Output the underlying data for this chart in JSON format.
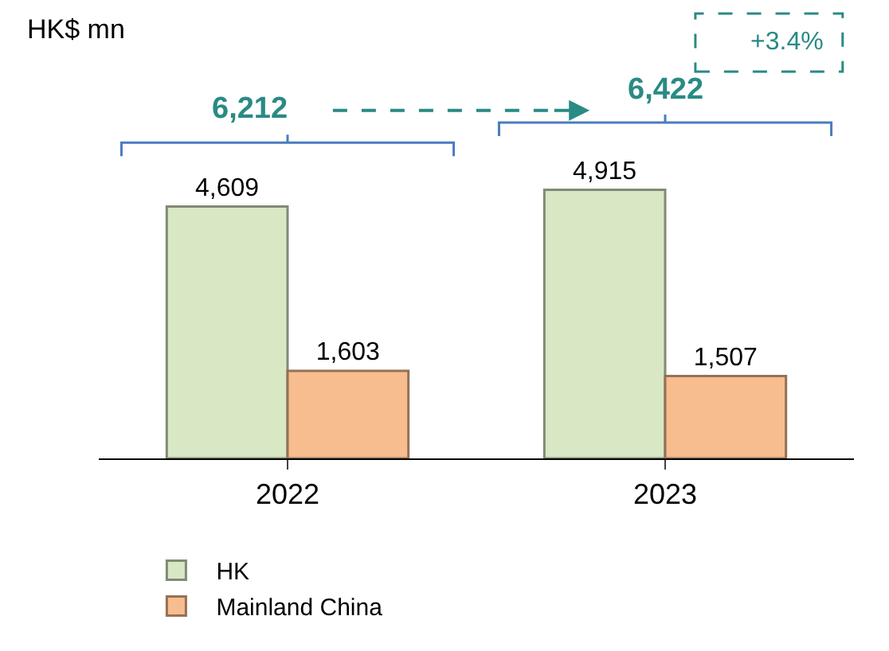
{
  "chart_data": {
    "type": "bar",
    "categories": [
      "2022",
      "2023"
    ],
    "series": [
      {
        "name": "HK",
        "color": "#d8e7c4",
        "values": [
          4609,
          4915
        ],
        "value_labels": [
          "4,609",
          "4,915"
        ]
      },
      {
        "name": "Mainland China",
        "color": "#f8bd8e",
        "values": [
          1603,
          1507
        ],
        "value_labels": [
          "1,603",
          "1,507"
        ]
      }
    ],
    "legend": "bottom",
    "annotations": [
      "HK$ mn",
      "6,212",
      "6,422",
      "+3.4%"
    ]
  }
}
